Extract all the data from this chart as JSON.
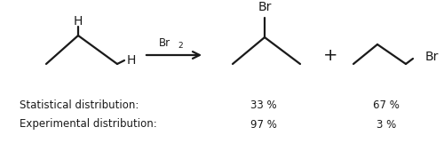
{
  "background_color": "#ffffff",
  "text_color": "#1a1a1a",
  "font_family": "DejaVu Sans",
  "label_fontsize": 8.5,
  "mol_fontsize": 10,
  "stat_label": "Statistical distribution:",
  "exp_label": "Experimental distribution:",
  "stat_val1": "33 %",
  "stat_val2": "67 %",
  "exp_val1": "97 %",
  "exp_val2": "3 %",
  "br_label": "Br",
  "h_label": "H",
  "plus_sign": "+",
  "line_color": "#1a1a1a",
  "line_width": 1.6,
  "figsize": [
    5.0,
    1.79
  ],
  "dpi": 100,
  "xlim": [
    0,
    500
  ],
  "ylim": [
    0,
    179
  ]
}
